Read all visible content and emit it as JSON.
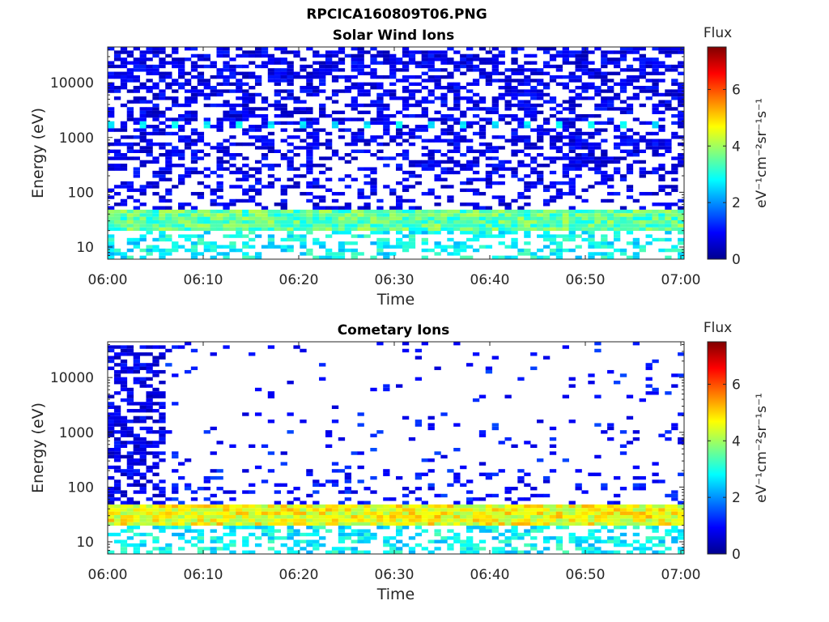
{
  "figure": {
    "title": "RPCICA160809T06.PNG"
  },
  "chart_data": [
    {
      "type": "heatmap",
      "title": "Solar Wind Ions",
      "xlabel": "Time",
      "ylabel": "Energy (eV)",
      "x_ticks": [
        "06:00",
        "06:10",
        "06:20",
        "06:30",
        "06:40",
        "06:50",
        "07:00"
      ],
      "x_range": [
        "06:00",
        "07:00"
      ],
      "y_scale": "log",
      "y_ticks": [
        10,
        100,
        1000,
        10000
      ],
      "y_tick_labels": [
        "10",
        "100",
        "1000",
        "10000"
      ],
      "ylim": [
        6,
        45000
      ],
      "colorbar": {
        "label": "Flux",
        "unit_label": "eV⁻¹cm⁻²sr⁻¹s⁻¹",
        "range": [
          0,
          7.5
        ],
        "ticks": [
          0,
          2,
          4,
          6
        ]
      },
      "features": [
        {
          "energy_range_eV": [
            20,
            45
          ],
          "time_range": [
            "06:00",
            "07:00"
          ],
          "flux": 3.5,
          "description": "continuous band"
        },
        {
          "energy_eV": 1700,
          "flux": 2.5,
          "description": "periodic patches"
        }
      ],
      "background_flux": 0.5
    },
    {
      "type": "heatmap",
      "title": "Cometary Ions",
      "xlabel": "Time",
      "ylabel": "Energy (eV)",
      "x_ticks": [
        "06:00",
        "06:10",
        "06:20",
        "06:30",
        "06:40",
        "06:50",
        "07:00"
      ],
      "x_range": [
        "06:00",
        "07:00"
      ],
      "y_scale": "log",
      "y_ticks": [
        10,
        100,
        1000,
        10000
      ],
      "y_tick_labels": [
        "10",
        "100",
        "1000",
        "10000"
      ],
      "ylim": [
        6,
        45000
      ],
      "colorbar": {
        "label": "Flux",
        "unit_label": "eV⁻¹cm⁻²sr⁻¹s⁻¹",
        "range": [
          0,
          7.5
        ],
        "ticks": [
          0,
          2,
          4,
          6
        ]
      },
      "features": [
        {
          "energy_range_eV": [
            20,
            45
          ],
          "time_range": [
            "06:00",
            "07:00"
          ],
          "flux": 4.6,
          "description": "strong continuous band"
        },
        {
          "energy_range_eV": [
            100,
            40000
          ],
          "time_range": [
            "06:00",
            "06:06"
          ],
          "flux": 0.7,
          "description": "broad low flux early"
        }
      ],
      "background_flux": 0.5
    }
  ]
}
